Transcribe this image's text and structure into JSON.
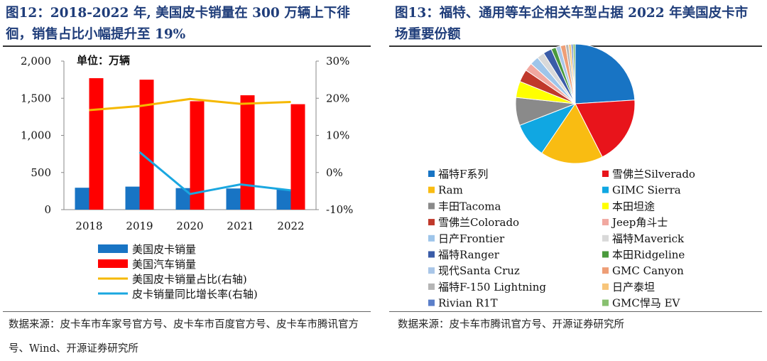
{
  "left": {
    "figure_title": "图12：2018-2022 年, 美国皮卡销量在 300 万辆上下徘徊，销售占比小幅提升至 19%",
    "unit_label": "单位：万辆",
    "source": "数据来源：皮卡车市车家号官方号、皮卡车市百度官方号、皮卡车市腾讯官方号、Wind、开源证券研究所"
  },
  "right": {
    "figure_title": "图13：福特、通用等车企相关车型占据 2022 年美国皮卡市场重要份额",
    "source": "数据来源：皮卡车市腾讯官方号、开源证券研究所"
  },
  "chart_data": [
    {
      "type": "bar",
      "categories": [
        "2018",
        "2019",
        "2020",
        "2021",
        "2022"
      ],
      "series": [
        {
          "name": "美国皮卡销量",
          "kind": "bar",
          "axis": "left",
          "color": "#1874c4",
          "values": [
            295,
            310,
            290,
            285,
            270
          ]
        },
        {
          "name": "美国汽车销量",
          "kind": "bar",
          "axis": "left",
          "color": "#ff0000",
          "values": [
            1770,
            1750,
            1460,
            1540,
            1420
          ]
        },
        {
          "name": "美国皮卡销量占比(右轴)",
          "kind": "line",
          "axis": "right",
          "color": "#f5b800",
          "values": [
            16.8,
            17.9,
            19.8,
            18.5,
            19.0
          ]
        },
        {
          "name": "皮卡销量同比增长率(右轴)",
          "kind": "line",
          "axis": "right",
          "color": "#1aa7e0",
          "values": [
            null,
            5.5,
            -5.8,
            -3.2,
            -4.8
          ]
        }
      ],
      "y_left": {
        "min": 0,
        "max": 2000,
        "ticks": [
          0,
          500,
          1000,
          1500,
          2000
        ],
        "tick_labels": [
          "0",
          "500",
          "1,000",
          "1,500",
          "2,000"
        ]
      },
      "y_right": {
        "min": -10,
        "max": 30,
        "ticks": [
          -10,
          0,
          10,
          20,
          30
        ],
        "tick_labels": [
          "-10%",
          "0%",
          "10%",
          "20%",
          "30%"
        ]
      },
      "grid": false,
      "legend_position": "bottom"
    },
    {
      "type": "pie",
      "legend_position": "bottom",
      "slices": [
        {
          "label": "福特F系列",
          "value": 24.0,
          "color": "#1874c4"
        },
        {
          "label": "雪佛兰Silverado",
          "value": 18.5,
          "color": "#e8141b"
        },
        {
          "label": "Ram",
          "value": 17.0,
          "color": "#f9bc12"
        },
        {
          "label": "GIMC Sierra",
          "value": 9.6,
          "color": "#10a7e2"
        },
        {
          "label": "丰田Tacoma",
          "value": 7.6,
          "color": "#8a8a8a"
        },
        {
          "label": "本田坦途",
          "value": 4.4,
          "color": "#ffff00"
        },
        {
          "label": "雪佛兰Colorado",
          "value": 3.4,
          "color": "#c0392b"
        },
        {
          "label": "Jeep角斗士",
          "value": 2.2,
          "color": "#f1a8a0"
        },
        {
          "label": "日产Frontier",
          "value": 2.4,
          "color": "#9ec5ea"
        },
        {
          "label": "福特Maverick",
          "value": 2.0,
          "color": "#d9d9d9"
        },
        {
          "label": "福特Ranger",
          "value": 2.3,
          "color": "#3a5ca8"
        },
        {
          "label": "本田Ridgeline",
          "value": 1.3,
          "color": "#4a9a3c"
        },
        {
          "label": "现代Santa Cruz",
          "value": 1.3,
          "color": "#a9c6e8"
        },
        {
          "label": "GMC Canyon",
          "value": 1.4,
          "color": "#ee9e76"
        },
        {
          "label": "福特F-150 Lightning",
          "value": 0.8,
          "color": "#b5b5b5"
        },
        {
          "label": "日产泰坦",
          "value": 0.7,
          "color": "#f7c57a"
        },
        {
          "label": "Rivian R1T",
          "value": 0.5,
          "color": "#5b7fc9"
        },
        {
          "label": "GMC悍马 EV",
          "value": 0.6,
          "color": "#88c070"
        }
      ]
    }
  ]
}
